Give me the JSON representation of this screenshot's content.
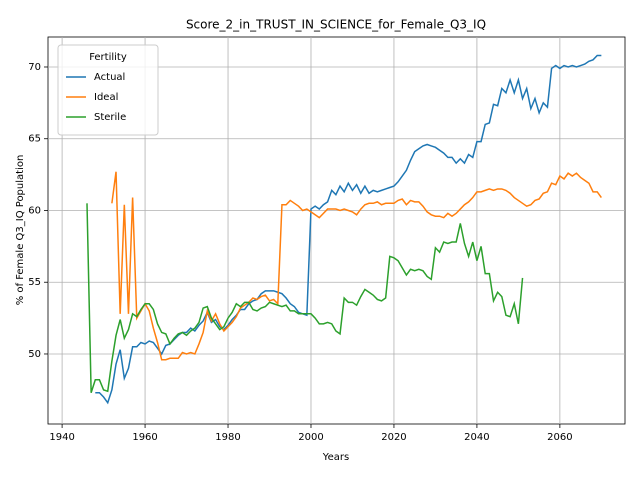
{
  "chart_data": {
    "type": "line",
    "title": "Score_2_in_TRUST_IN_SCIENCE_for_Female_Q3_IQ",
    "xlabel": "Years",
    "ylabel": "% of Female Q3_IQ Population",
    "legend_title": "Fertility",
    "legend": "upper left",
    "grid": true,
    "xlim": [
      1936.6,
      2075.7
    ],
    "ylim": [
      45.12,
      72.09
    ],
    "xticks": [
      1940,
      1960,
      1980,
      2000,
      2020,
      2040,
      2060
    ],
    "yticks": [
      50,
      55,
      60,
      65,
      70
    ],
    "series": [
      {
        "name": "Actual",
        "color": "#1f77b4",
        "x": [
          1948,
          1949,
          1950,
          1951,
          1952,
          1953,
          1954,
          1955,
          1956,
          1957,
          1958,
          1959,
          1960,
          1961,
          1962,
          1963,
          1964,
          1965,
          1966,
          1967,
          1968,
          1969,
          1970,
          1971,
          1972,
          1973,
          1974,
          1975,
          1976,
          1977,
          1978,
          1979,
          1980,
          1981,
          1982,
          1983,
          1984,
          1985,
          1986,
          1987,
          1988,
          1989,
          1990,
          1991,
          1992,
          1993,
          1994,
          1995,
          1996,
          1997,
          1998,
          1999,
          2000,
          2001,
          2002,
          2003,
          2004,
          2005,
          2006,
          2007,
          2008,
          2009,
          2010,
          2011,
          2012,
          2013,
          2014,
          2015,
          2016,
          2017,
          2018,
          2019,
          2020,
          2021,
          2022,
          2023,
          2024,
          2025,
          2026,
          2027,
          2028,
          2029,
          2030,
          2031,
          2032,
          2033,
          2034,
          2035,
          2036,
          2037,
          2038,
          2039,
          2040,
          2041,
          2042,
          2043,
          2044,
          2045,
          2046,
          2047,
          2048,
          2049,
          2050,
          2051,
          2052,
          2053,
          2054,
          2055,
          2056,
          2057,
          2058,
          2059,
          2060,
          2061,
          2062,
          2063,
          2064,
          2065,
          2066,
          2067,
          2068,
          2069,
          2070
        ],
        "values": [
          47.3,
          47.3,
          47.0,
          46.6,
          47.5,
          49.3,
          50.3,
          48.3,
          49.0,
          50.5,
          50.5,
          50.8,
          50.7,
          50.9,
          50.8,
          50.4,
          50.0,
          50.6,
          50.7,
          51.0,
          51.3,
          51.5,
          51.5,
          51.8,
          51.6,
          52.0,
          52.3,
          52.9,
          52.2,
          52.4,
          51.9,
          51.7,
          52.0,
          52.4,
          52.7,
          53.1,
          53.1,
          53.5,
          53.7,
          53.8,
          54.2,
          54.4,
          54.4,
          54.4,
          54.3,
          54.2,
          53.9,
          53.5,
          53.3,
          52.9,
          52.8,
          52.7,
          60.1,
          60.3,
          60.1,
          60.4,
          60.6,
          61.4,
          61.1,
          61.7,
          61.3,
          61.9,
          61.4,
          61.8,
          61.2,
          61.7,
          61.2,
          61.4,
          61.3,
          61.4,
          61.5,
          61.6,
          61.7,
          62.0,
          62.4,
          62.8,
          63.5,
          64.1,
          64.3,
          64.5,
          64.6,
          64.5,
          64.4,
          64.2,
          64.0,
          63.7,
          63.7,
          63.3,
          63.6,
          63.3,
          63.9,
          63.7,
          64.8,
          64.8,
          66.0,
          66.1,
          67.4,
          67.3,
          68.5,
          68.2,
          69.1,
          68.2,
          69.1,
          67.8,
          68.5,
          67.1,
          67.8,
          66.8,
          67.5,
          67.2,
          69.9,
          70.1,
          69.9,
          70.1,
          70.0,
          70.1,
          70.0,
          70.1,
          70.2,
          70.4,
          70.5,
          70.8,
          70.8
        ]
      },
      {
        "name": "Ideal",
        "color": "#ff7f0e",
        "x": [
          1952,
          1953,
          1954,
          1955,
          1956,
          1957,
          1958,
          1959,
          1960,
          1961,
          1962,
          1963,
          1964,
          1965,
          1966,
          1967,
          1968,
          1969,
          1970,
          1971,
          1972,
          1973,
          1974,
          1975,
          1976,
          1977,
          1978,
          1979,
          1980,
          1981,
          1982,
          1983,
          1984,
          1985,
          1986,
          1987,
          1988,
          1989,
          1990,
          1991,
          1992,
          1993,
          1994,
          1995,
          1996,
          1997,
          1998,
          1999,
          2000,
          2001,
          2002,
          2003,
          2004,
          2005,
          2006,
          2007,
          2008,
          2009,
          2010,
          2011,
          2012,
          2013,
          2014,
          2015,
          2016,
          2017,
          2018,
          2019,
          2020,
          2021,
          2022,
          2023,
          2024,
          2025,
          2026,
          2027,
          2028,
          2029,
          2030,
          2031,
          2032,
          2033,
          2034,
          2035,
          2036,
          2037,
          2038,
          2039,
          2040,
          2041,
          2042,
          2043,
          2044,
          2045,
          2046,
          2047,
          2048,
          2049,
          2050,
          2051,
          2052,
          2053,
          2054,
          2055,
          2056,
          2057,
          2058,
          2059,
          2060,
          2061,
          2062,
          2063,
          2064,
          2065,
          2066,
          2067,
          2068,
          2069,
          2070
        ],
        "values": [
          60.5,
          62.7,
          52.8,
          60.4,
          52.8,
          60.9,
          52.5,
          53.0,
          53.5,
          53.0,
          51.8,
          50.8,
          49.6,
          49.6,
          49.7,
          49.7,
          49.7,
          50.1,
          50.0,
          50.1,
          50.0,
          50.7,
          51.5,
          53.0,
          52.3,
          52.8,
          52.1,
          51.6,
          51.9,
          52.2,
          52.6,
          53.2,
          53.4,
          53.6,
          53.9,
          53.8,
          54.0,
          54.1,
          53.7,
          53.8,
          53.5,
          60.4,
          60.4,
          60.7,
          60.5,
          60.3,
          60.0,
          60.1,
          59.9,
          59.7,
          59.5,
          59.8,
          60.1,
          60.1,
          60.1,
          60.0,
          60.1,
          60.0,
          59.9,
          59.7,
          60.1,
          60.4,
          60.5,
          60.5,
          60.6,
          60.4,
          60.5,
          60.5,
          60.5,
          60.7,
          60.8,
          60.4,
          60.7,
          60.6,
          60.6,
          60.3,
          59.9,
          59.7,
          59.6,
          59.6,
          59.5,
          59.8,
          59.6,
          59.8,
          60.1,
          60.4,
          60.6,
          60.9,
          61.3,
          61.3,
          61.4,
          61.5,
          61.4,
          61.5,
          61.5,
          61.4,
          61.2,
          60.9,
          60.7,
          60.5,
          60.3,
          60.4,
          60.7,
          60.8,
          61.2,
          61.3,
          61.9,
          61.8,
          62.4,
          62.2,
          62.6,
          62.4,
          62.6,
          62.3,
          62.1,
          61.9,
          61.3,
          61.3,
          60.9
        ]
      },
      {
        "name": "Sterile",
        "color": "#2ca02c",
        "x": [
          1946,
          1947,
          1948,
          1949,
          1950,
          1951,
          1952,
          1953,
          1954,
          1955,
          1956,
          1957,
          1958,
          1959,
          1960,
          1961,
          1962,
          1963,
          1964,
          1965,
          1966,
          1967,
          1968,
          1969,
          1970,
          1971,
          1972,
          1973,
          1974,
          1975,
          1976,
          1977,
          1978,
          1979,
          1980,
          1981,
          1982,
          1983,
          1984,
          1985,
          1986,
          1987,
          1988,
          1989,
          1990,
          1991,
          1992,
          1993,
          1994,
          1995,
          1996,
          1997,
          1998,
          1999,
          2000,
          2001,
          2002,
          2003,
          2004,
          2005,
          2006,
          2007,
          2008,
          2009,
          2010,
          2011,
          2012,
          2013,
          2014,
          2015,
          2016,
          2017,
          2018,
          2019,
          2020,
          2021,
          2022,
          2023,
          2024,
          2025,
          2026,
          2027,
          2028,
          2029,
          2030,
          2031,
          2032,
          2033,
          2034,
          2035,
          2036,
          2037,
          2038,
          2039,
          2040,
          2041,
          2042,
          2043,
          2044,
          2045,
          2046,
          2047,
          2048,
          2049,
          2050,
          2051
        ],
        "values": [
          60.5,
          47.3,
          48.2,
          48.2,
          47.5,
          47.4,
          49.5,
          51.3,
          52.4,
          51.1,
          51.7,
          52.8,
          52.6,
          53.1,
          53.5,
          53.5,
          53.1,
          52.1,
          51.5,
          51.4,
          50.7,
          51.1,
          51.4,
          51.5,
          51.3,
          51.6,
          51.8,
          52.2,
          53.2,
          53.3,
          52.5,
          52.1,
          51.7,
          51.9,
          52.5,
          52.9,
          53.5,
          53.3,
          53.6,
          53.6,
          53.1,
          53.0,
          53.2,
          53.3,
          53.6,
          53.5,
          53.4,
          53.3,
          53.4,
          53.0,
          53.0,
          52.8,
          52.8,
          52.8,
          52.8,
          52.5,
          52.1,
          52.1,
          52.2,
          52.1,
          51.6,
          51.4,
          53.9,
          53.6,
          53.6,
          53.4,
          54.0,
          54.5,
          54.3,
          54.1,
          53.8,
          53.7,
          53.9,
          56.8,
          56.7,
          56.5,
          56.0,
          55.5,
          55.9,
          55.8,
          55.9,
          55.8,
          55.4,
          55.2,
          57.4,
          57.1,
          57.8,
          57.7,
          57.8,
          57.8,
          59.1,
          57.7,
          56.8,
          57.8,
          56.5,
          57.5,
          55.6,
          55.6,
          53.7,
          54.3,
          54.0,
          52.7,
          52.6,
          53.5,
          52.1,
          55.3
        ]
      }
    ]
  }
}
